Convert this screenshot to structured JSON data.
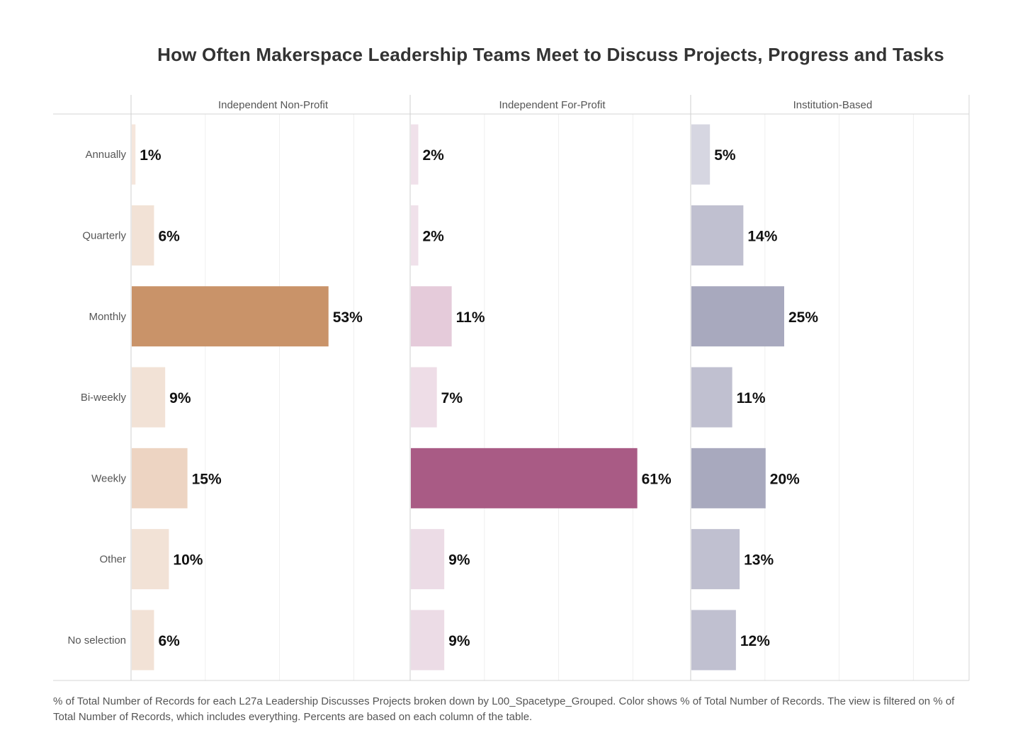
{
  "chart_data": {
    "type": "bar",
    "orientation": "horizontal",
    "title": "How Often Makerspace Leadership Teams Meet to Discuss Projects, Progress and Tasks",
    "categories": [
      "Annually",
      "Quarterly",
      "Monthly",
      "Bi-weekly",
      "Weekly",
      "Other",
      "No selection"
    ],
    "series": [
      {
        "name": "Independent Non-Profit",
        "values": [
          1,
          6,
          53,
          9,
          15,
          10,
          6
        ],
        "labels": [
          "1%",
          "6%",
          "53%",
          "9%",
          "15%",
          "10%",
          "6%"
        ],
        "colors": [
          "#f5e6dc",
          "#f2e2d6",
          "#c99369",
          "#f2e2d6",
          "#edd4c2",
          "#f2e2d6",
          "#f2e2d6"
        ]
      },
      {
        "name": "Independent For-Profit",
        "values": [
          2,
          2,
          11,
          7,
          61,
          9,
          9
        ],
        "labels": [
          "2%",
          "2%",
          "11%",
          "7%",
          "61%",
          "9%",
          "9%"
        ],
        "colors": [
          "#f0e1ea",
          "#f0e1ea",
          "#e5cbda",
          "#eedde7",
          "#a95b85",
          "#ecdce6",
          "#ecdce6"
        ]
      },
      {
        "name": "Institution-Based",
        "values": [
          5,
          14,
          25,
          11,
          20,
          13,
          12
        ],
        "labels": [
          "5%",
          "14%",
          "25%",
          "11%",
          "20%",
          "13%",
          "12%"
        ],
        "colors": [
          "#d6d6e1",
          "#c0c0d0",
          "#a8a9be",
          "#c0c0d0",
          "#a8a9be",
          "#c0c0d0",
          "#c0c0d0"
        ]
      }
    ],
    "xlim": [
      0,
      75
    ],
    "grid": true,
    "legend": "none",
    "footnote": "% of Total Number of Records for each L27a Leadership Discusses Projects broken down by L00_Spacetype_Grouped.  Color shows % of Total Number of Records. The view is filtered on % of Total Number of Records, which includes everything. Percents are based on each column of the table."
  }
}
